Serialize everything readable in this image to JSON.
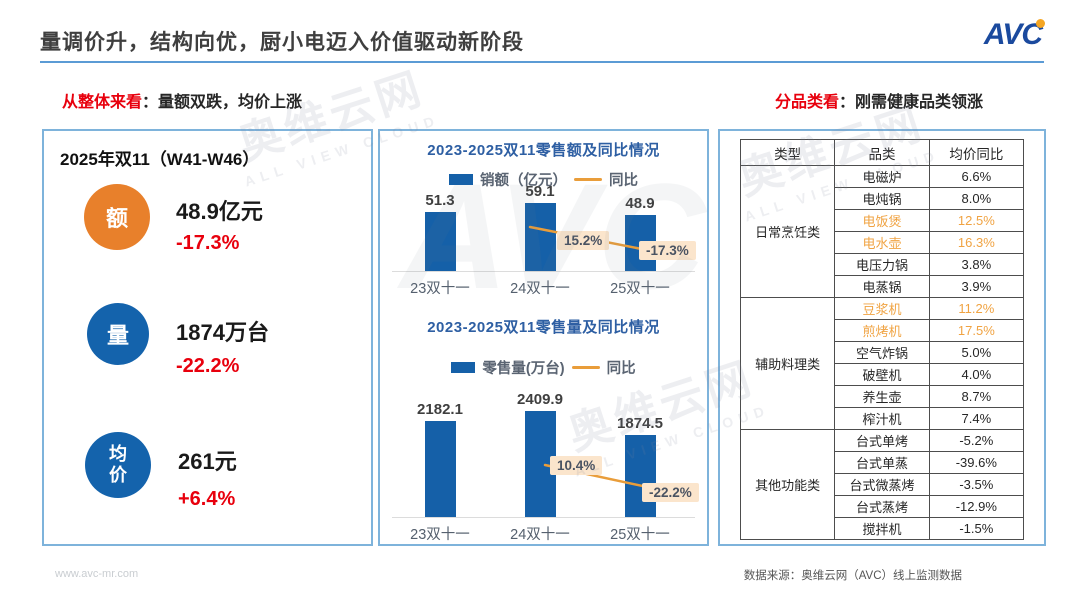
{
  "header": {
    "title": "量调价升，结构向优，厨小电迈入价值驱动新阶段",
    "logo_text": "AVC"
  },
  "subheadings": {
    "left_red": "从整体来看",
    "left_rest": "：量额双跌，均价上涨",
    "right_red": "分品类看",
    "right_rest": "：刚需健康品类领涨"
  },
  "overall_panel": {
    "title": "2025年双11（W41-W46）",
    "metrics": [
      {
        "badge": "额",
        "badge_color": "#E8802B",
        "value": "48.9亿元",
        "change": "-17.3%"
      },
      {
        "badge": "量",
        "badge_color": "#1463AC",
        "value": "1874万台",
        "change": "-22.2%"
      },
      {
        "badge": "均价",
        "badge_color": "#1463AC",
        "value": "261元",
        "change": "+6.4%"
      }
    ]
  },
  "chart_data": [
    {
      "type": "bar",
      "title": "2023-2025双11零售额及同比情况",
      "bar_legend": "销额（亿元）",
      "line_legend": "同比",
      "categories": [
        "23双十一",
        "24双十一",
        "25双十一"
      ],
      "values": [
        51.3,
        59.1,
        48.9
      ],
      "yoy_values": [
        15.2,
        -17.3
      ],
      "yoy_labels": [
        "15.2%",
        "-17.3%"
      ],
      "bar_color": "#1560A8",
      "line_color": "#E99D3A",
      "legend_position": "top",
      "grid": false
    },
    {
      "type": "bar",
      "title": "2023-2025双11零售量及同比情况",
      "bar_legend": "零售量(万台)",
      "line_legend": "同比",
      "categories": [
        "23双十一",
        "24双十一",
        "25双十一"
      ],
      "values": [
        2182.1,
        2409.9,
        1874.5
      ],
      "yoy_values": [
        10.4,
        -22.2
      ],
      "yoy_labels": [
        "10.4%",
        "-22.2%"
      ],
      "bar_color": "#1560A8",
      "line_color": "#E99D3A",
      "legend_position": "top",
      "grid": false
    }
  ],
  "table": {
    "headers": [
      "类型",
      "品类",
      "均价同比"
    ],
    "groups": [
      {
        "type": "日常烹饪类",
        "rows": [
          {
            "name": "电磁炉",
            "value": "6.6%",
            "highlight": false
          },
          {
            "name": "电炖锅",
            "value": "8.0%",
            "highlight": false
          },
          {
            "name": "电饭煲",
            "value": "12.5%",
            "highlight": true
          },
          {
            "name": "电水壶",
            "value": "16.3%",
            "highlight": true
          },
          {
            "name": "电压力锅",
            "value": "3.8%",
            "highlight": false
          },
          {
            "name": "电蒸锅",
            "value": "3.9%",
            "highlight": false
          }
        ]
      },
      {
        "type": "辅助料理类",
        "rows": [
          {
            "name": "豆浆机",
            "value": "11.2%",
            "highlight": true
          },
          {
            "name": "煎烤机",
            "value": "17.5%",
            "highlight": true
          },
          {
            "name": "空气炸锅",
            "value": "5.0%",
            "highlight": false
          },
          {
            "name": "破壁机",
            "value": "4.0%",
            "highlight": false
          },
          {
            "name": "养生壶",
            "value": "8.7%",
            "highlight": false
          },
          {
            "name": "榨汁机",
            "value": "7.4%",
            "highlight": false
          }
        ]
      },
      {
        "type": "其他功能类",
        "rows": [
          {
            "name": "台式单烤",
            "value": "-5.2%",
            "highlight": false
          },
          {
            "name": "台式单蒸",
            "value": "-39.6%",
            "highlight": false
          },
          {
            "name": "台式微蒸烤",
            "value": "-3.5%",
            "highlight": false
          },
          {
            "name": "台式蒸烤",
            "value": "-12.9%",
            "highlight": false
          },
          {
            "name": "搅拌机",
            "value": "-1.5%",
            "highlight": false
          }
        ]
      }
    ]
  },
  "footer": {
    "left": "www.avc-mr.com",
    "right": "数据来源：奥维云网（AVC）线上监测数据"
  },
  "watermark": {
    "main": "奥维云网",
    "sub": "ALL VIEW CLOUD",
    "logo": "AVC"
  },
  "colors": {
    "accent_blue": "#1560A8",
    "accent_orange": "#E99D3A",
    "circle_orange": "#E8802B",
    "circle_blue": "#1463AC",
    "red": "#E8000D",
    "highlight_orange": "#F0A342",
    "panel_border": "#7EB3DB",
    "title_rule": "#5B9BD5",
    "yoy_label_bg": "#FBE5CC"
  }
}
